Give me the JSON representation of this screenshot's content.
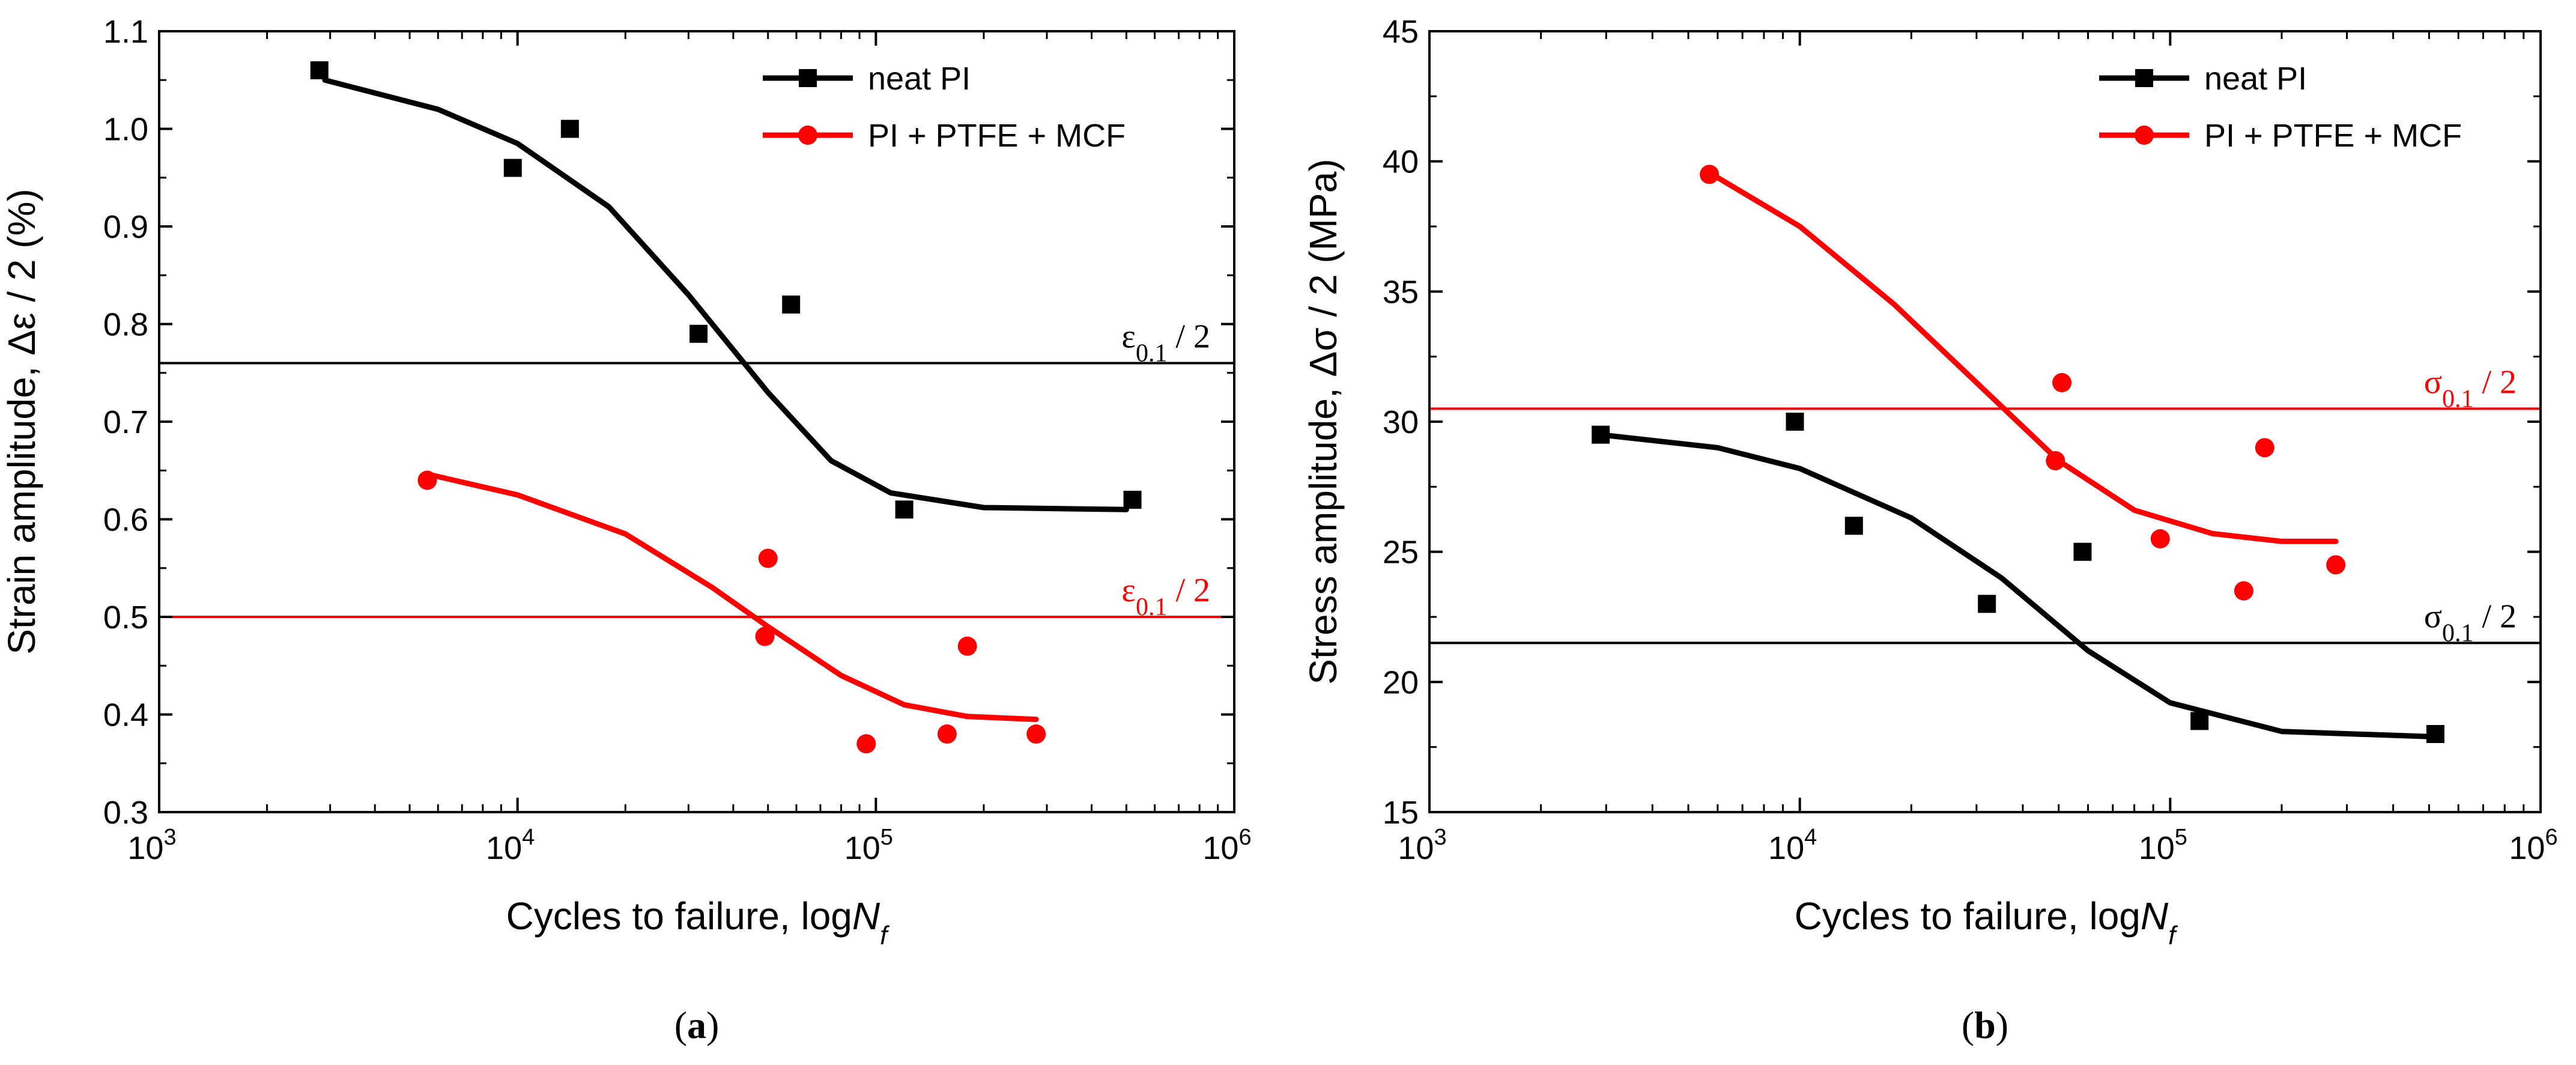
{
  "chart_data": [
    {
      "type": "scatter",
      "panel": "(a)",
      "panel_letter": "a",
      "xlabel_prefix": "Cycles to failure, log",
      "xlabel_N": "N",
      "xlabel_sub": "f",
      "ylabel": "Strain amplitude, Δε / 2 (%)",
      "xscale": "log",
      "xlim": [
        1000,
        1000000
      ],
      "ylim": [
        0.3,
        1.1
      ],
      "xticks": [
        {
          "value": 1000,
          "base": "10",
          "exp": "3"
        },
        {
          "value": 10000,
          "base": "10",
          "exp": "4"
        },
        {
          "value": 100000,
          "base": "10",
          "exp": "5"
        },
        {
          "value": 1000000,
          "base": "10",
          "exp": "6"
        }
      ],
      "yticks": [
        0.3,
        0.4,
        0.5,
        0.6,
        0.7,
        0.8,
        0.9,
        1.0,
        1.1
      ],
      "ytick_labels": [
        "0.3",
        "0.4",
        "0.5",
        "0.6",
        "0.7",
        "0.8",
        "0.9",
        "1.0",
        "1.1"
      ],
      "series": [
        {
          "name": "neat PI",
          "color": "#000000",
          "marker": "square",
          "points": [
            [
              2800,
              1.06
            ],
            [
              9700,
              0.96
            ],
            [
              14000,
              1.0
            ],
            [
              32000,
              0.79
            ],
            [
              58000,
              0.82
            ],
            [
              120000,
              0.61
            ],
            [
              520000,
              0.62
            ]
          ],
          "fit": [
            [
              2900,
              1.05
            ],
            [
              6000,
              1.02
            ],
            [
              10000,
              0.985
            ],
            [
              18000,
              0.92
            ],
            [
              30000,
              0.83
            ],
            [
              50000,
              0.73
            ],
            [
              75000,
              0.66
            ],
            [
              110000,
              0.627
            ],
            [
              200000,
              0.612
            ],
            [
              500000,
              0.61
            ]
          ]
        },
        {
          "name": "PI + PTFE + MCF",
          "color": "#ff0000",
          "marker": "circle",
          "points": [
            [
              5600,
              0.64
            ],
            [
              49000,
              0.48
            ],
            [
              50000,
              0.56
            ],
            [
              94000,
              0.37
            ],
            [
              158000,
              0.38
            ],
            [
              180000,
              0.47
            ],
            [
              280000,
              0.38
            ]
          ],
          "fit": [
            [
              5800,
              0.645
            ],
            [
              10000,
              0.625
            ],
            [
              20000,
              0.585
            ],
            [
              35000,
              0.53
            ],
            [
              50000,
              0.49
            ],
            [
              80000,
              0.44
            ],
            [
              120000,
              0.41
            ],
            [
              180000,
              0.398
            ],
            [
              280000,
              0.395
            ]
          ]
        }
      ],
      "reference_lines": [
        {
          "value": 0.76,
          "color": "#000000",
          "symbol": "ε",
          "sub": "0.1",
          "suffix": " / 2"
        },
        {
          "value": 0.5,
          "color": "#ff0000",
          "symbol": "ε",
          "sub": "0.1",
          "suffix": " / 2"
        }
      ],
      "legend": "top-right"
    },
    {
      "type": "scatter",
      "panel": "(b)",
      "panel_letter": "b",
      "xlabel_prefix": "Cycles to failure, log",
      "xlabel_N": "N",
      "xlabel_sub": "f",
      "ylabel": "Stress amplitude, Δσ / 2 (MPa)",
      "xscale": "log",
      "xlim": [
        1000,
        1000000
      ],
      "ylim": [
        15,
        45
      ],
      "xticks": [
        {
          "value": 1000,
          "base": "10",
          "exp": "3"
        },
        {
          "value": 10000,
          "base": "10",
          "exp": "4"
        },
        {
          "value": 100000,
          "base": "10",
          "exp": "5"
        },
        {
          "value": 1000000,
          "base": "10",
          "exp": "6"
        }
      ],
      "yticks": [
        15,
        20,
        25,
        30,
        35,
        40,
        45
      ],
      "ytick_labels": [
        "15",
        "20",
        "25",
        "30",
        "35",
        "40",
        "45"
      ],
      "series": [
        {
          "name": "neat PI",
          "color": "#000000",
          "marker": "square",
          "points": [
            [
              2900,
              29.5
            ],
            [
              9700,
              30.0
            ],
            [
              14000,
              26.0
            ],
            [
              32000,
              23.0
            ],
            [
              58000,
              25.0
            ],
            [
              120000,
              18.5
            ],
            [
              520000,
              18.0
            ]
          ],
          "fit": [
            [
              2900,
              29.5
            ],
            [
              6000,
              29.0
            ],
            [
              10000,
              28.2
            ],
            [
              20000,
              26.3
            ],
            [
              35000,
              24.0
            ],
            [
              60000,
              21.2
            ],
            [
              100000,
              19.2
            ],
            [
              200000,
              18.1
            ],
            [
              500000,
              17.9
            ]
          ]
        },
        {
          "name": "PI + PTFE + MCF",
          "color": "#ff0000",
          "marker": "circle",
          "points": [
            [
              5700,
              39.5
            ],
            [
              49000,
              28.5
            ],
            [
              51000,
              31.5
            ],
            [
              94000,
              25.5
            ],
            [
              158000,
              23.5
            ],
            [
              180000,
              29.0
            ],
            [
              280000,
              24.5
            ]
          ],
          "fit": [
            [
              5800,
              39.5
            ],
            [
              10000,
              37.5
            ],
            [
              18000,
              34.5
            ],
            [
              30000,
              31.5
            ],
            [
              50000,
              28.5
            ],
            [
              80000,
              26.6
            ],
            [
              130000,
              25.7
            ],
            [
              200000,
              25.4
            ],
            [
              280000,
              25.4
            ]
          ]
        }
      ],
      "reference_lines": [
        {
          "value": 30.5,
          "color": "#ff0000",
          "symbol": "σ",
          "sub": "0.1",
          "suffix": " / 2"
        },
        {
          "value": 21.5,
          "color": "#000000",
          "symbol": "σ",
          "sub": "0.1",
          "suffix": " / 2"
        }
      ],
      "legend": "top-right"
    }
  ]
}
